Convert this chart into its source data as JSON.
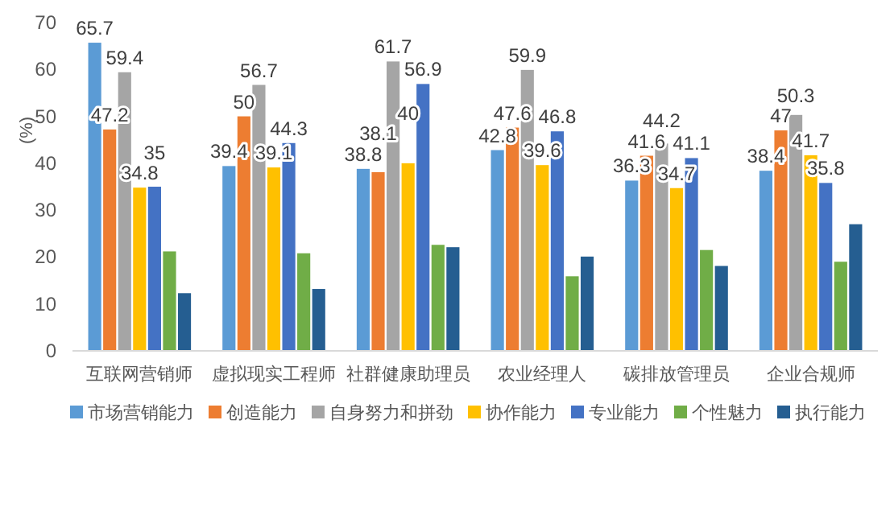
{
  "chart_data": {
    "type": "bar",
    "ylabel": "(%)",
    "categories": [
      "互联网营销师",
      "虚拟现实工程师",
      "社群健康助理员",
      "农业经理人",
      "碳排放管理员",
      "企业合规师"
    ],
    "ylim": [
      0,
      70
    ],
    "yticks": [
      0,
      10,
      20,
      30,
      40,
      50,
      60,
      70
    ],
    "grid": false,
    "legend": "bottom",
    "series": [
      {
        "name": "市场营销能力",
        "color": "#5b9bd5",
        "values": [
          65.7,
          39.4,
          38.8,
          42.8,
          36.3,
          38.4
        ],
        "value_labels": [
          "65.7",
          "39.4",
          "38.8",
          "42.8",
          "36.3",
          "38.4"
        ]
      },
      {
        "name": "创造能力",
        "color": "#ed7d31",
        "values": [
          47.2,
          50,
          38.1,
          47.6,
          41.6,
          47
        ],
        "value_labels": [
          "47.2",
          "50",
          "38.1",
          "47.6",
          "41.6",
          "47"
        ]
      },
      {
        "name": "自身努力和拼劲",
        "color": "#a5a5a5",
        "values": [
          59.4,
          56.7,
          61.7,
          59.9,
          44.2,
          50.3
        ],
        "value_labels": [
          "59.4",
          "56.7",
          "61.7",
          "59.9",
          "44.2",
          "50.3"
        ]
      },
      {
        "name": "协作能力",
        "color": "#ffc000",
        "values": [
          34.8,
          39.1,
          40,
          39.6,
          34.7,
          41.7
        ],
        "value_labels": [
          "34.8",
          "39.1",
          "40",
          "39.6",
          "34.7",
          "41.7"
        ]
      },
      {
        "name": "专业能力",
        "color": "#4472c4",
        "values": [
          35,
          44.3,
          56.9,
          46.8,
          41.1,
          35.8
        ],
        "value_labels": [
          "35",
          "44.3",
          "56.9",
          "46.8",
          "41.1",
          "35.8"
        ]
      },
      {
        "name": "个性魅力",
        "color": "#70ad47",
        "values": [
          21.2,
          20.8,
          22.6,
          15.9,
          21.5,
          19.0
        ]
      },
      {
        "name": "执行能力",
        "color": "#255e91",
        "values": [
          12.3,
          13.2,
          22.1,
          20.1,
          18.1,
          27.0
        ]
      }
    ]
  }
}
